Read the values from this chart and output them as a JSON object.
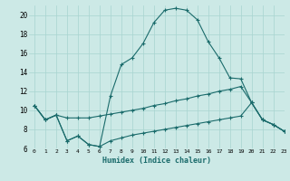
{
  "xlabel": "Humidex (Indice chaleur)",
  "xlim": [
    -0.5,
    23
  ],
  "ylim": [
    6,
    21
  ],
  "yticks": [
    6,
    8,
    10,
    12,
    14,
    16,
    18,
    20
  ],
  "xticks": [
    0,
    1,
    2,
    3,
    4,
    5,
    6,
    7,
    8,
    9,
    10,
    11,
    12,
    13,
    14,
    15,
    16,
    17,
    18,
    19,
    20,
    21,
    22,
    23
  ],
  "background_color": "#cce9e6",
  "line_color": "#1a6b6b",
  "grid_color": "#a8d4d0",
  "curve1_x": [
    0,
    1,
    2,
    3,
    4,
    5,
    6,
    7,
    8,
    9,
    10,
    11,
    12,
    13,
    14,
    15,
    16,
    17,
    18,
    19,
    20,
    21,
    22,
    23
  ],
  "curve1_y": [
    10.5,
    9.0,
    9.5,
    6.8,
    7.3,
    6.4,
    6.2,
    11.5,
    14.8,
    15.5,
    17.0,
    19.2,
    20.5,
    20.7,
    20.5,
    19.5,
    17.2,
    15.5,
    13.4,
    13.3,
    10.8,
    9.0,
    8.5,
    7.8
  ],
  "curve2_x": [
    0,
    1,
    2,
    3,
    4,
    5,
    6,
    7,
    8,
    9,
    10,
    11,
    12,
    13,
    14,
    15,
    16,
    17,
    18,
    19,
    20,
    21,
    22,
    23
  ],
  "curve2_y": [
    10.5,
    9.0,
    9.5,
    9.2,
    9.2,
    9.2,
    9.4,
    9.6,
    9.8,
    10.0,
    10.2,
    10.5,
    10.7,
    11.0,
    11.2,
    11.5,
    11.7,
    12.0,
    12.2,
    12.5,
    10.8,
    9.0,
    8.5,
    7.8
  ],
  "curve3_x": [
    0,
    1,
    2,
    3,
    4,
    5,
    6,
    7,
    8,
    9,
    10,
    11,
    12,
    13,
    14,
    15,
    16,
    17,
    18,
    19,
    20,
    21,
    22,
    23
  ],
  "curve3_y": [
    10.5,
    9.0,
    9.5,
    6.8,
    7.3,
    6.4,
    6.2,
    6.8,
    7.1,
    7.4,
    7.6,
    7.8,
    8.0,
    8.2,
    8.4,
    8.6,
    8.8,
    9.0,
    9.2,
    9.4,
    10.8,
    9.0,
    8.5,
    7.8
  ]
}
